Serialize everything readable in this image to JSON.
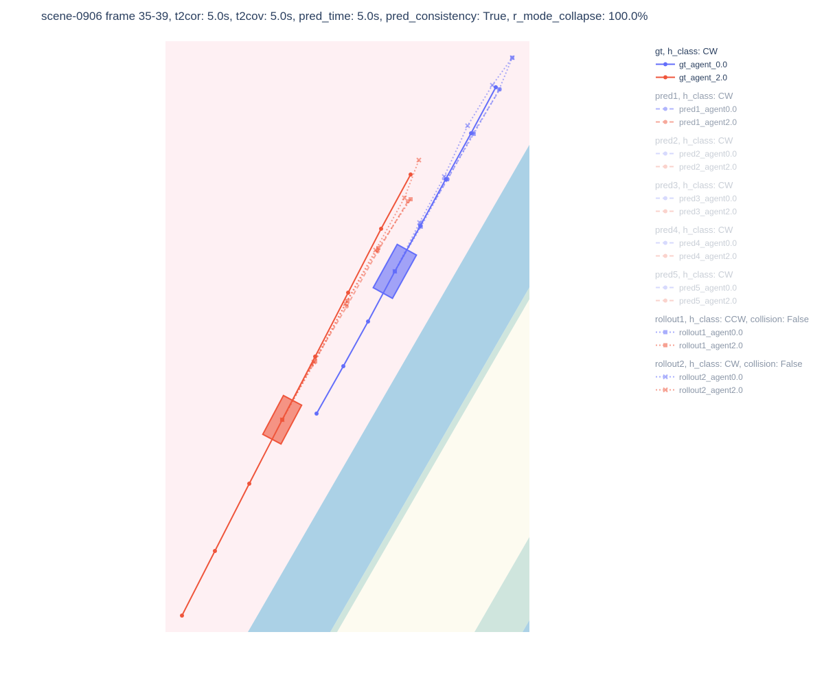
{
  "title": "scene-0906 frame 35-39, t2cor: 5.0s, t2cov: 5.0s, pred_time: 5.0s, pred_consistency: True, r_mode_collapse: 100.0%",
  "colors": {
    "agent0": "#636efa",
    "agent2": "#ef553b",
    "map_drivable_blue": "#abd1e6",
    "map_green": "#cfe5dd",
    "map_pink": "#fef0f3",
    "map_white": "#fdfbf0"
  },
  "legend": [
    {
      "title": "gt, h_class: CW",
      "opacity": 1.0,
      "items": [
        {
          "label": "gt_agent_0.0",
          "color": "#636efa",
          "dash": "solid",
          "marker": "circle"
        },
        {
          "label": "gt_agent_2.0",
          "color": "#ef553b",
          "dash": "solid",
          "marker": "circle"
        }
      ]
    },
    {
      "title": "pred1, h_class: CW",
      "opacity": 0.5,
      "items": [
        {
          "label": "pred1_agent0.0",
          "color": "#636efa",
          "dash": "dash",
          "marker": "circle"
        },
        {
          "label": "pred1_agent2.0",
          "color": "#ef553b",
          "dash": "dash",
          "marker": "circle"
        }
      ]
    },
    {
      "title": "pred2, h_class: CW",
      "opacity": 0.25,
      "items": [
        {
          "label": "pred2_agent0.0",
          "color": "#636efa",
          "dash": "dash",
          "marker": "circle"
        },
        {
          "label": "pred2_agent2.0",
          "color": "#ef553b",
          "dash": "dash",
          "marker": "circle"
        }
      ]
    },
    {
      "title": "pred3, h_class: CW",
      "opacity": 0.25,
      "items": [
        {
          "label": "pred3_agent0.0",
          "color": "#636efa",
          "dash": "dash",
          "marker": "circle"
        },
        {
          "label": "pred3_agent2.0",
          "color": "#ef553b",
          "dash": "dash",
          "marker": "circle"
        }
      ]
    },
    {
      "title": "pred4, h_class: CW",
      "opacity": 0.25,
      "items": [
        {
          "label": "pred4_agent0.0",
          "color": "#636efa",
          "dash": "dash",
          "marker": "circle"
        },
        {
          "label": "pred4_agent2.0",
          "color": "#ef553b",
          "dash": "dash",
          "marker": "circle"
        }
      ]
    },
    {
      "title": "pred5, h_class: CW",
      "opacity": 0.25,
      "items": [
        {
          "label": "pred5_agent0.0",
          "color": "#636efa",
          "dash": "dash",
          "marker": "circle"
        },
        {
          "label": "pred5_agent2.0",
          "color": "#ef553b",
          "dash": "dash",
          "marker": "circle"
        }
      ]
    },
    {
      "title": "rollout1, h_class: CCW, collision: False",
      "opacity": 0.55,
      "items": [
        {
          "label": "rollout1_agent0.0",
          "color": "#636efa",
          "dash": "dot",
          "marker": "square"
        },
        {
          "label": "rollout1_agent2.0",
          "color": "#ef553b",
          "dash": "dot",
          "marker": "square"
        }
      ]
    },
    {
      "title": "rollout2, h_class: CW, collision: False",
      "opacity": 0.55,
      "items": [
        {
          "label": "rollout2_agent0.0",
          "color": "#636efa",
          "dash": "dot",
          "marker": "x"
        },
        {
          "label": "rollout2_agent2.0",
          "color": "#ef553b",
          "dash": "dot",
          "marker": "x"
        }
      ]
    }
  ],
  "chart_data": {
    "type": "scatter",
    "title": "scene-0906 frame 35-39, t2cor: 5.0s, t2cov: 5.0s, pred_time: 5.0s, pred_consistency: True, r_mode_collapse: 100.0%",
    "xlabel": "",
    "ylabel": "",
    "xlim": [
      0,
      530
    ],
    "ylim": [
      0,
      860
    ],
    "grid": false,
    "legend_position": "right",
    "map_bands": {
      "slope": -1.73,
      "boundaries_at_y0": [
        120,
        240,
        250,
        450,
        520
      ],
      "band_colors": [
        "pink",
        "blue",
        "green",
        "white",
        "green",
        "blue",
        "pink"
      ]
    },
    "agent_boxes": [
      {
        "name": "agent0",
        "cx": 334,
        "cy": 525,
        "length": 72,
        "width": 32,
        "heading_deg": 61,
        "color": "#636efa"
      },
      {
        "name": "agent2",
        "cx": 170,
        "cy": 309,
        "length": 64,
        "width": 30,
        "heading_deg": 62,
        "color": "#ef553b"
      }
    ],
    "series": [
      {
        "name": "gt_agent_0.0",
        "color": "#636efa",
        "dash": "solid",
        "marker": "circle",
        "opacity": 1.0,
        "x": [
          220,
          259,
          295,
          334,
          371,
          408,
          445,
          481
        ],
        "y": [
          318,
          387,
          452,
          525,
          591,
          659,
          726,
          793
        ]
      },
      {
        "name": "gt_agent_2.0",
        "color": "#ef553b",
        "dash": "solid",
        "marker": "circle",
        "opacity": 1.0,
        "x": [
          24,
          72,
          122,
          170,
          218,
          266,
          314,
          357
        ],
        "y": [
          24,
          118,
          216,
          309,
          401,
          494,
          587,
          666
        ]
      },
      {
        "name": "pred1_agent0.0",
        "color": "#636efa",
        "dash": "dash",
        "marker": "circle",
        "opacity": 0.5,
        "x": [
          334,
          371,
          411,
          448,
          487
        ],
        "y": [
          525,
          593,
          659,
          726,
          790
        ]
      },
      {
        "name": "pred1_agent2.0",
        "color": "#ef553b",
        "dash": "dash",
        "marker": "circle",
        "opacity": 0.5,
        "x": [
          170,
          213,
          264,
          309,
          353
        ],
        "y": [
          309,
          388,
          474,
          554,
          627
        ]
      },
      {
        "name": "rollout1_agent0.0",
        "color": "#636efa",
        "dash": "dot",
        "marker": "square",
        "opacity": 0.55,
        "x": [
          334,
          372,
          410,
          449,
          486,
          505
        ],
        "y": [
          525,
          590,
          659,
          725,
          790,
          836
        ]
      },
      {
        "name": "rollout1_agent2.0",
        "color": "#ef553b",
        "dash": "dot",
        "marker": "square",
        "opacity": 0.55,
        "x": [
          170,
          218,
          265,
          310,
          357
        ],
        "y": [
          309,
          394,
          482,
          559,
          630
        ]
      },
      {
        "name": "rollout2_agent0.0",
        "color": "#636efa",
        "dash": "dot",
        "marker": "x",
        "opacity": 0.55,
        "x": [
          334,
          370,
          406,
          440,
          476,
          505
        ],
        "y": [
          525,
          596,
          663,
          737,
          796,
          836
        ]
      },
      {
        "name": "rollout2_agent2.0",
        "color": "#ef553b",
        "dash": "dot",
        "marker": "x",
        "opacity": 0.55,
        "x": [
          170,
          216,
          262,
          306,
          348,
          369
        ],
        "y": [
          309,
          393,
          478,
          556,
          632,
          687
        ]
      }
    ]
  }
}
